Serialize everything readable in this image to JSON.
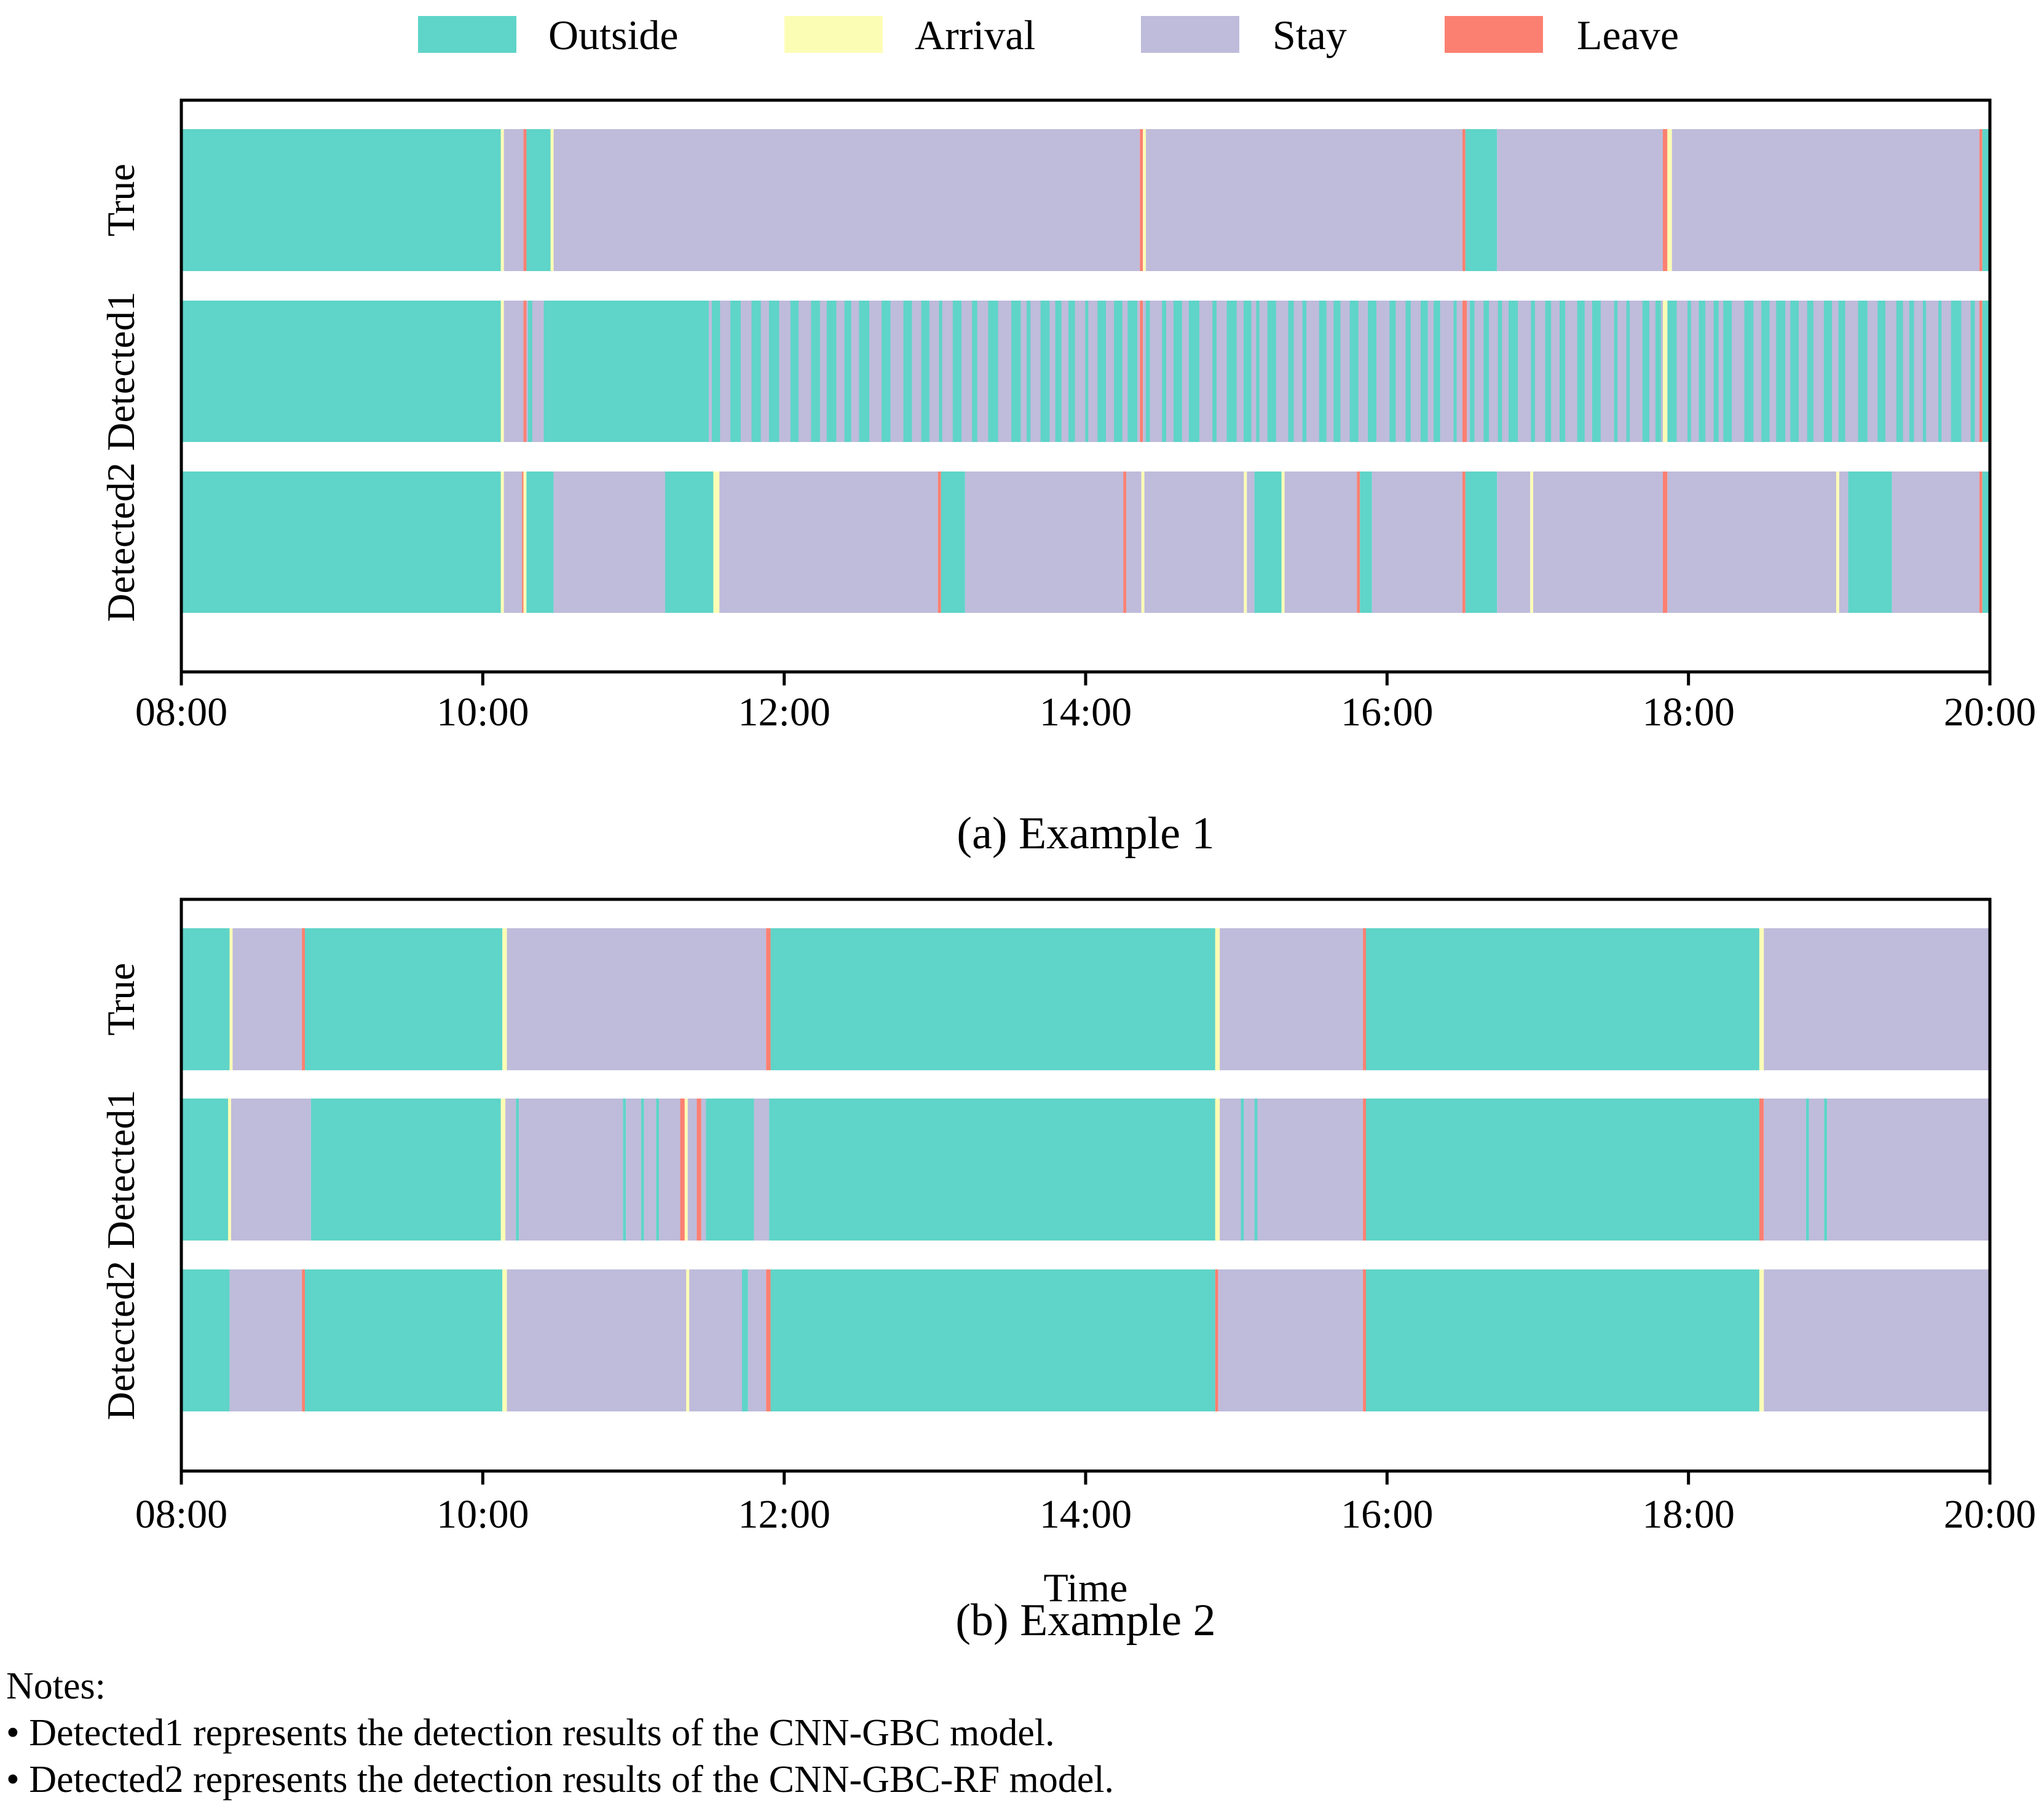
{
  "legend": [
    {
      "label": "Outside",
      "color": "#5fd4c8"
    },
    {
      "label": "Arrival",
      "color": "#fcfdb5"
    },
    {
      "label": "Stay",
      "color": "#bfbbdb"
    },
    {
      "label": "Leave",
      "color": "#fb8071"
    }
  ],
  "chart_data": [
    {
      "type": "timeline",
      "title": "(a) Example 1",
      "xlabel": "",
      "xlim": [
        8,
        20
      ],
      "xticks": [
        "08:00",
        "10:00",
        "12:00",
        "14:00",
        "16:00",
        "18:00",
        "20:00"
      ],
      "rows": [
        {
          "label": "True",
          "segments": [
            [
              8,
              10.12,
              "Outside"
            ],
            [
              10.12,
              10.14,
              "Arrival"
            ],
            [
              10.14,
              10.27,
              "Stay"
            ],
            [
              10.27,
              10.29,
              "Leave"
            ],
            [
              10.29,
              10.45,
              "Outside"
            ],
            [
              10.45,
              10.47,
              "Arrival"
            ],
            [
              10.47,
              14.36,
              "Stay"
            ],
            [
              14.36,
              14.38,
              "Leave"
            ],
            [
              14.38,
              14.4,
              "Arrival"
            ],
            [
              14.4,
              16.5,
              "Stay"
            ],
            [
              16.5,
              16.52,
              "Leave"
            ],
            [
              16.52,
              16.73,
              "Outside"
            ],
            [
              16.73,
              17.83,
              "Stay"
            ],
            [
              17.83,
              17.86,
              "Leave"
            ],
            [
              17.86,
              17.89,
              "Arrival"
            ],
            [
              17.89,
              19.93,
              "Stay"
            ],
            [
              19.93,
              19.95,
              "Leave"
            ],
            [
              19.95,
              20,
              "Outside"
            ]
          ],
          "noise": []
        },
        {
          "label": "Detected1",
          "segments": [
            [
              8,
              10.12,
              "Outside"
            ],
            [
              10.12,
              10.14,
              "Arrival"
            ],
            [
              10.14,
              10.27,
              "Stay"
            ],
            [
              10.27,
              10.29,
              "Leave"
            ],
            [
              10.29,
              10.45,
              "Stay"
            ],
            [
              10.45,
              11.5,
              "Outside"
            ],
            [
              11.5,
              14.36,
              "Stay"
            ],
            [
              14.36,
              14.38,
              "Leave"
            ],
            [
              14.38,
              16.5,
              "Stay"
            ],
            [
              16.5,
              16.53,
              "Leave"
            ],
            [
              16.53,
              17.83,
              "Stay"
            ],
            [
              17.83,
              17.86,
              "Arrival"
            ],
            [
              17.86,
              19.93,
              "Stay"
            ],
            [
              19.93,
              19.95,
              "Leave"
            ],
            [
              19.95,
              20,
              "Outside"
            ]
          ],
          "noise": [
            [
              10.3,
              10.45
            ],
            [
              11.52,
              16.48
            ],
            [
              16.55,
              19.9
            ]
          ]
        },
        {
          "label": "Detected2",
          "segments": [
            [
              8,
              10.12,
              "Outside"
            ],
            [
              10.12,
              10.14,
              "Arrival"
            ],
            [
              10.14,
              10.26,
              "Stay"
            ],
            [
              10.26,
              10.27,
              "Leave"
            ],
            [
              10.27,
              10.29,
              "Arrival"
            ],
            [
              10.29,
              10.47,
              "Outside"
            ],
            [
              10.47,
              11.21,
              "Stay"
            ],
            [
              11.21,
              11.53,
              "Outside"
            ],
            [
              11.53,
              11.57,
              "Arrival"
            ],
            [
              11.57,
              13.02,
              "Stay"
            ],
            [
              13.02,
              13.04,
              "Leave"
            ],
            [
              13.04,
              13.2,
              "Outside"
            ],
            [
              13.2,
              14.25,
              "Stay"
            ],
            [
              14.25,
              14.27,
              "Leave"
            ],
            [
              14.27,
              14.37,
              "Stay"
            ],
            [
              14.37,
              14.39,
              "Arrival"
            ],
            [
              14.39,
              15.05,
              "Stay"
            ],
            [
              15.05,
              15.07,
              "Arrival"
            ],
            [
              15.07,
              15.12,
              "Stay"
            ],
            [
              15.12,
              15.3,
              "Outside"
            ],
            [
              15.3,
              15.32,
              "Arrival"
            ],
            [
              15.32,
              15.8,
              "Stay"
            ],
            [
              15.8,
              15.82,
              "Leave"
            ],
            [
              15.82,
              15.9,
              "Outside"
            ],
            [
              15.9,
              16.5,
              "Stay"
            ],
            [
              16.5,
              16.52,
              "Leave"
            ],
            [
              16.52,
              16.73,
              "Outside"
            ],
            [
              16.73,
              16.95,
              "Stay"
            ],
            [
              16.95,
              16.97,
              "Arrival"
            ],
            [
              16.97,
              17.83,
              "Stay"
            ],
            [
              17.83,
              17.86,
              "Leave"
            ],
            [
              17.86,
              18.98,
              "Stay"
            ],
            [
              18.98,
              19.0,
              "Arrival"
            ],
            [
              19.0,
              19.06,
              "Stay"
            ],
            [
              19.06,
              19.35,
              "Outside"
            ],
            [
              19.35,
              19.93,
              "Stay"
            ],
            [
              19.93,
              19.95,
              "Leave"
            ],
            [
              19.95,
              20,
              "Outside"
            ]
          ],
          "noise": []
        }
      ]
    },
    {
      "type": "timeline",
      "title": "(b) Example 2",
      "xlabel": "Time",
      "xlim": [
        8,
        20
      ],
      "xticks": [
        "08:00",
        "10:00",
        "12:00",
        "14:00",
        "16:00",
        "18:00",
        "20:00"
      ],
      "rows": [
        {
          "label": "True",
          "segments": [
            [
              8,
              8.32,
              "Outside"
            ],
            [
              8.32,
              8.34,
              "Arrival"
            ],
            [
              8.34,
              8.8,
              "Stay"
            ],
            [
              8.8,
              8.82,
              "Leave"
            ],
            [
              8.82,
              10.13,
              "Outside"
            ],
            [
              10.13,
              10.16,
              "Arrival"
            ],
            [
              10.16,
              11.88,
              "Stay"
            ],
            [
              11.88,
              11.91,
              "Leave"
            ],
            [
              11.91,
              14.86,
              "Outside"
            ],
            [
              14.86,
              14.89,
              "Arrival"
            ],
            [
              14.89,
              15.84,
              "Stay"
            ],
            [
              15.84,
              15.86,
              "Leave"
            ],
            [
              15.86,
              18.47,
              "Outside"
            ],
            [
              18.47,
              18.5,
              "Arrival"
            ],
            [
              18.5,
              20,
              "Stay"
            ]
          ],
          "noise": []
        },
        {
          "label": "Detected1",
          "segments": [
            [
              8,
              8.31,
              "Outside"
            ],
            [
              8.31,
              8.33,
              "Arrival"
            ],
            [
              8.33,
              8.86,
              "Stay"
            ],
            [
              8.86,
              10.12,
              "Outside"
            ],
            [
              10.12,
              10.15,
              "Arrival"
            ],
            [
              10.15,
              10.22,
              "Stay"
            ],
            [
              10.22,
              10.24,
              "Outside"
            ],
            [
              10.24,
              10.93,
              "Stay"
            ],
            [
              10.93,
              10.95,
              "Outside"
            ],
            [
              10.95,
              11.05,
              "Stay"
            ],
            [
              11.05,
              11.07,
              "Outside"
            ],
            [
              11.07,
              11.15,
              "Stay"
            ],
            [
              11.15,
              11.17,
              "Outside"
            ],
            [
              11.17,
              11.31,
              "Stay"
            ],
            [
              11.31,
              11.34,
              "Leave"
            ],
            [
              11.34,
              11.36,
              "Arrival"
            ],
            [
              11.36,
              11.42,
              "Stay"
            ],
            [
              11.42,
              11.45,
              "Leave"
            ],
            [
              11.45,
              11.48,
              "Stay"
            ],
            [
              11.48,
              11.8,
              "Outside"
            ],
            [
              11.8,
              11.9,
              "Stay"
            ],
            [
              11.9,
              14.86,
              "Outside"
            ],
            [
              14.86,
              14.89,
              "Arrival"
            ],
            [
              14.89,
              15.03,
              "Stay"
            ],
            [
              15.03,
              15.05,
              "Outside"
            ],
            [
              15.05,
              15.12,
              "Stay"
            ],
            [
              15.12,
              15.14,
              "Outside"
            ],
            [
              15.14,
              15.84,
              "Stay"
            ],
            [
              15.84,
              15.86,
              "Leave"
            ],
            [
              15.86,
              18.47,
              "Outside"
            ],
            [
              18.47,
              18.5,
              "Leave"
            ],
            [
              18.5,
              18.78,
              "Stay"
            ],
            [
              18.78,
              18.8,
              "Outside"
            ],
            [
              18.8,
              18.9,
              "Stay"
            ],
            [
              18.9,
              18.92,
              "Outside"
            ],
            [
              18.92,
              20,
              "Stay"
            ]
          ],
          "noise": []
        },
        {
          "label": "Detected2",
          "segments": [
            [
              8,
              8.32,
              "Outside"
            ],
            [
              8.32,
              8.8,
              "Stay"
            ],
            [
              8.8,
              8.82,
              "Leave"
            ],
            [
              8.82,
              10.13,
              "Outside"
            ],
            [
              10.13,
              10.16,
              "Arrival"
            ],
            [
              10.16,
              11.35,
              "Stay"
            ],
            [
              11.35,
              11.37,
              "Arrival"
            ],
            [
              11.37,
              11.72,
              "Stay"
            ],
            [
              11.72,
              11.76,
              "Outside"
            ],
            [
              11.76,
              11.88,
              "Stay"
            ],
            [
              11.88,
              11.91,
              "Leave"
            ],
            [
              11.91,
              14.86,
              "Outside"
            ],
            [
              14.86,
              14.88,
              "Leave"
            ],
            [
              14.88,
              15.84,
              "Stay"
            ],
            [
              15.84,
              15.86,
              "Leave"
            ],
            [
              15.86,
              18.47,
              "Outside"
            ],
            [
              18.47,
              18.5,
              "Arrival"
            ],
            [
              18.5,
              20,
              "Stay"
            ]
          ],
          "noise": []
        }
      ]
    }
  ],
  "notes": {
    "heading": "Notes:",
    "lines": [
      "• Detected1 represents the detection results of the CNN-GBC model.",
      "• Detected2 represents the detection results of the CNN-GBC-RF model."
    ]
  }
}
